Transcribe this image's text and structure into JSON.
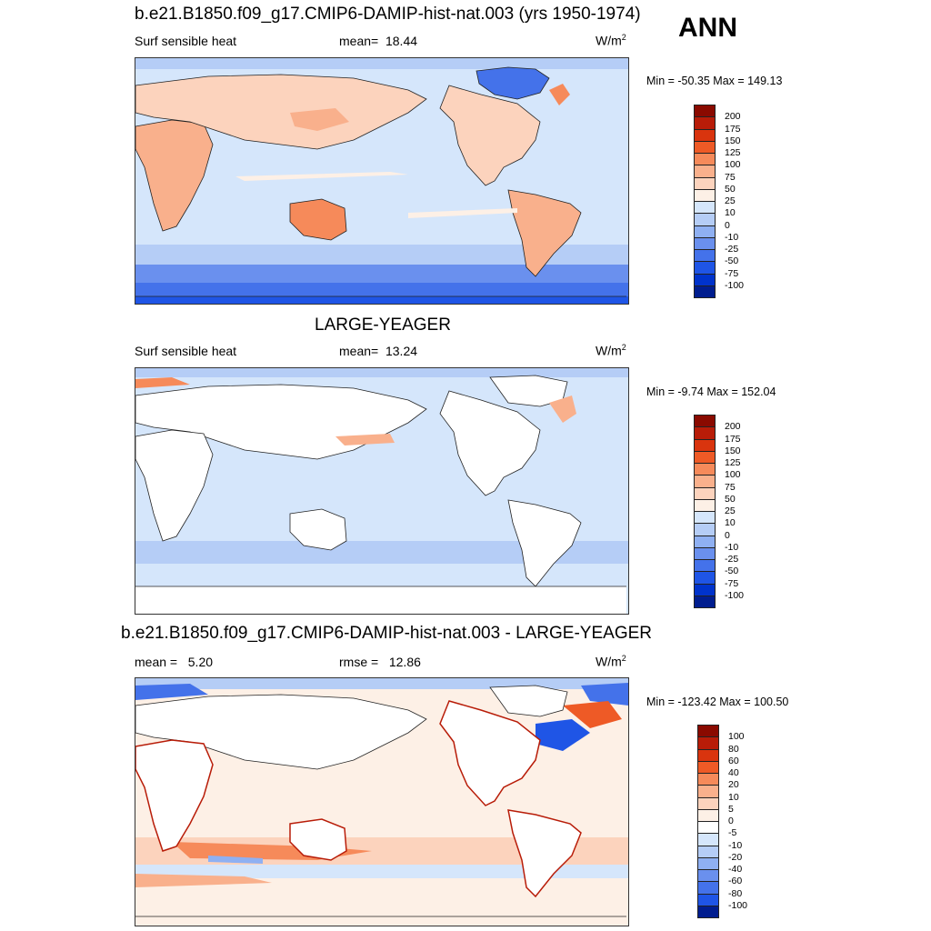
{
  "header": {
    "season": "ANN"
  },
  "panels": [
    {
      "title": "b.e21.B1850.f09_g17.CMIP6-DAMIP-hist-nat.003 (yrs 1950-1974)",
      "variable": "Surf sensible heat",
      "stat_label": "mean=",
      "stat_value": "18.44",
      "units": "W/m",
      "units_sup": "2",
      "minmax": "Min = -50.35 Max = 149.13",
      "colorbar": {
        "labels": [
          "200",
          "175",
          "150",
          "125",
          "100",
          "75",
          "50",
          "25",
          "10",
          "0",
          "-10",
          "-25",
          "-50",
          "-75",
          "-100"
        ],
        "colors": [
          "#8a0a00",
          "#b81c08",
          "#d9340e",
          "#ee5a26",
          "#f68a5a",
          "#f9b08c",
          "#fcd3bd",
          "#fdf0e6",
          "#d5e6fb",
          "#b5cdf6",
          "#8fb0f2",
          "#6a90ee",
          "#4472ea",
          "#1f55e6",
          "#0033cc",
          "#001d8f"
        ]
      }
    },
    {
      "title": "LARGE-YEAGER",
      "variable": "Surf sensible heat",
      "stat_label": "mean=",
      "stat_value": "13.24",
      "units": "W/m",
      "units_sup": "2",
      "minmax": "Min =  -9.74 Max = 152.04",
      "colorbar": {
        "labels": [
          "200",
          "175",
          "150",
          "125",
          "100",
          "75",
          "50",
          "25",
          "10",
          "0",
          "-10",
          "-25",
          "-50",
          "-75",
          "-100"
        ],
        "colors": [
          "#8a0a00",
          "#b81c08",
          "#d9340e",
          "#ee5a26",
          "#f68a5a",
          "#f9b08c",
          "#fcd3bd",
          "#fdf0e6",
          "#d5e6fb",
          "#b5cdf6",
          "#8fb0f2",
          "#6a90ee",
          "#4472ea",
          "#1f55e6",
          "#0033cc",
          "#001d8f"
        ]
      }
    },
    {
      "title": "b.e21.B1850.f09_g17.CMIP6-DAMIP-hist-nat.003 - LARGE-YEAGER",
      "mean_label": "mean =",
      "mean_value": "5.20",
      "rmse_label": "rmse =",
      "rmse_value": "12.86",
      "units": "W/m",
      "units_sup": "2",
      "minmax": "Min = -123.42 Max = 100.50",
      "colorbar": {
        "labels": [
          "100",
          "80",
          "60",
          "40",
          "20",
          "10",
          "5",
          "0",
          "-5",
          "-10",
          "-20",
          "-40",
          "-60",
          "-80",
          "-100"
        ],
        "colors": [
          "#8a0a00",
          "#b81c08",
          "#d9340e",
          "#ee5a26",
          "#f68a5a",
          "#f9b08c",
          "#fcd3bd",
          "#fdf0e6",
          "#ffffff",
          "#d5e6fb",
          "#b5cdf6",
          "#8fb0f2",
          "#6a90ee",
          "#4472ea",
          "#1f55e6",
          "#001d8f"
        ]
      }
    }
  ]
}
